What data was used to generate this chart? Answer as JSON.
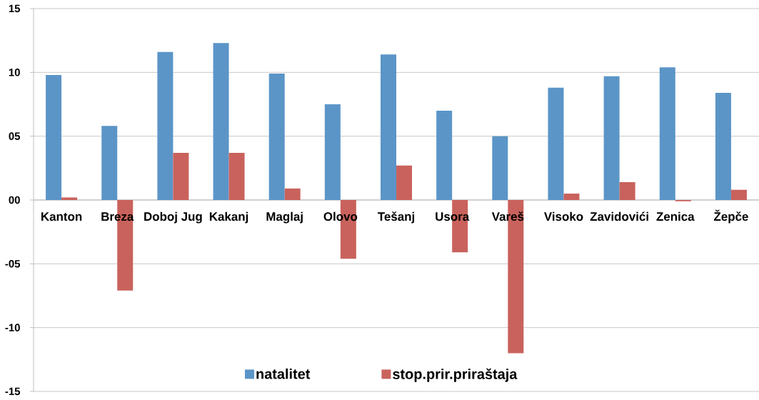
{
  "chart_data": {
    "type": "bar",
    "categories": [
      "Kanton",
      "Breza",
      "Doboj Jug",
      "Kakanj",
      "Maglaj",
      "Olovo",
      "Tešanj",
      "Usora",
      "Vareš",
      "Visoko",
      "Zavidovići",
      "Zenica",
      "Žepče"
    ],
    "series": [
      {
        "name": "natalitet",
        "color": "#5b95c7",
        "values": [
          9.8,
          5.8,
          11.6,
          12.3,
          9.9,
          7.5,
          11.4,
          7.0,
          5.0,
          8.8,
          9.7,
          10.4,
          8.4
        ]
      },
      {
        "name": "stop.prir.priraštaja",
        "color": "#c9625c",
        "values": [
          0.2,
          -7.1,
          3.7,
          3.7,
          0.9,
          -4.6,
          2.7,
          -4.1,
          -12.0,
          0.5,
          1.4,
          -0.1,
          0.8
        ]
      }
    ],
    "ylim": [
      -15,
      15
    ],
    "yticks": [
      -15,
      -10,
      {
        "value": -5,
        "label": "-05"
      },
      {
        "value": 0,
        "label": "00"
      },
      {
        "value": 5,
        "label": "05"
      },
      10,
      15
    ],
    "grid": "y",
    "legend": "bottom"
  }
}
